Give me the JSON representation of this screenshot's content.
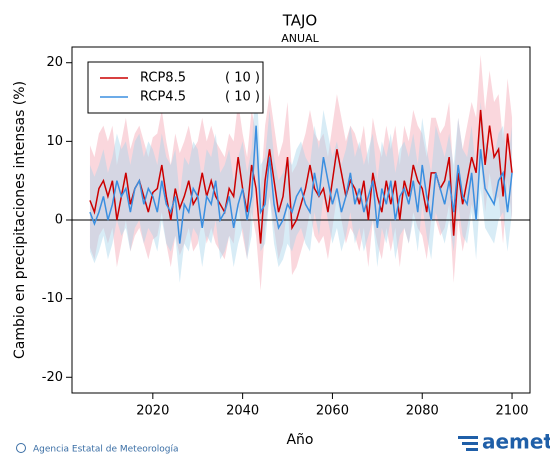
{
  "chart_data": {
    "type": "line",
    "title": "TAJO",
    "subtitle": "ANUAL",
    "x_label": "Año",
    "y_label": "Cambio en precipitaciones intensas (%)",
    "x": [
      2006,
      2007,
      2008,
      2009,
      2010,
      2011,
      2012,
      2013,
      2014,
      2015,
      2016,
      2017,
      2018,
      2019,
      2020,
      2021,
      2022,
      2023,
      2024,
      2025,
      2026,
      2027,
      2028,
      2029,
      2030,
      2031,
      2032,
      2033,
      2034,
      2035,
      2036,
      2037,
      2038,
      2039,
      2040,
      2041,
      2042,
      2043,
      2044,
      2045,
      2046,
      2047,
      2048,
      2049,
      2050,
      2051,
      2052,
      2053,
      2054,
      2055,
      2056,
      2057,
      2058,
      2059,
      2060,
      2061,
      2062,
      2063,
      2064,
      2065,
      2066,
      2067,
      2068,
      2069,
      2070,
      2071,
      2072,
      2073,
      2074,
      2075,
      2076,
      2077,
      2078,
      2079,
      2080,
      2081,
      2082,
      2083,
      2084,
      2085,
      2086,
      2087,
      2088,
      2089,
      2090,
      2091,
      2092,
      2093,
      2094,
      2095,
      2096,
      2097,
      2098,
      2099,
      2100
    ],
    "xlim": [
      2002,
      2104
    ],
    "xticks": [
      2020,
      2040,
      2060,
      2080,
      2100
    ],
    "ylim": [
      -22,
      22
    ],
    "yticks": [
      -20,
      -10,
      0,
      10,
      20
    ],
    "series": [
      {
        "name": "RCP8.5",
        "members_label": "( 10 )",
        "color": "#cc0000",
        "band_color": "#f4a6b4",
        "values": [
          2.5,
          1,
          4,
          5,
          3,
          5,
          0,
          3,
          6,
          2,
          4,
          5,
          3,
          1,
          3.5,
          4,
          7,
          3,
          0,
          4,
          1.5,
          3,
          5,
          2,
          3,
          6,
          3,
          5,
          3,
          2,
          1,
          4,
          3,
          8,
          4,
          1,
          7,
          4,
          -3,
          5,
          9,
          5,
          1,
          3,
          8,
          -1,
          0,
          2,
          4,
          7,
          4,
          3,
          4,
          1,
          5,
          9,
          6,
          3,
          5,
          4,
          2,
          5,
          0,
          6,
          3,
          1,
          5,
          2,
          5,
          0,
          5,
          3,
          7,
          5,
          4,
          1,
          6,
          6,
          4,
          5,
          8,
          -2,
          6,
          2,
          5,
          8,
          6,
          14,
          7,
          12,
          8,
          9,
          3,
          11,
          6
        ],
        "upper": [
          9.5,
          8,
          11,
          12,
          10,
          12,
          7,
          10,
          13,
          9,
          11,
          12,
          10,
          8,
          10.5,
          11,
          14,
          10,
          7,
          11,
          8.5,
          10,
          12,
          9,
          10,
          13,
          10,
          12,
          10,
          9,
          8,
          11,
          10,
          15,
          11,
          8,
          14,
          11,
          4,
          12,
          16,
          12,
          8,
          10,
          15,
          6,
          7,
          9,
          11,
          14,
          11,
          10,
          11,
          8,
          12,
          16,
          13,
          10,
          12,
          11,
          9,
          12,
          7,
          13,
          10,
          8,
          12,
          9,
          12,
          7,
          12,
          10,
          14,
          12,
          11,
          8,
          13,
          13,
          11,
          12,
          15,
          5,
          13,
          9,
          12,
          15,
          13,
          21,
          14,
          19,
          15,
          16,
          10,
          18,
          13
        ],
        "lower": [
          -3.5,
          -5,
          -2,
          -1,
          -3,
          -1,
          -6,
          -3,
          0,
          -4,
          -2,
          -1,
          -3,
          -5,
          -2.5,
          -2,
          1,
          -3,
          -6,
          -2,
          -4.5,
          -3,
          -1,
          -4,
          -3,
          0,
          -3,
          -1,
          -3,
          -4,
          -5,
          -2,
          -3,
          2,
          -2,
          -5,
          1,
          -2,
          -9,
          -1,
          3,
          -1,
          -5,
          -3,
          2,
          -7,
          -6,
          -4,
          -2,
          1,
          -2,
          -3,
          -2,
          -5,
          -1,
          3,
          0,
          -3,
          -1,
          -2,
          -4,
          -1,
          -6,
          0,
          -3,
          -5,
          -1,
          -4,
          -1,
          -6,
          -1,
          -3,
          1,
          -1,
          -2,
          -5,
          0,
          0,
          -2,
          -1,
          2,
          -8,
          0,
          -4,
          -1,
          2,
          0,
          8,
          1,
          6,
          2,
          3,
          -3,
          5,
          0
        ]
      },
      {
        "name": "RCP4.5",
        "members_label": "( 10 )",
        "color": "#3b8fe0",
        "band_color": "#a9d4ea",
        "values": [
          1,
          -0.5,
          1,
          3,
          0,
          2,
          5,
          3,
          4,
          1,
          4,
          5,
          2,
          4,
          3,
          1,
          5,
          2,
          1,
          3,
          -3,
          2,
          1,
          4,
          3,
          -1,
          3,
          2,
          5,
          0,
          1,
          3,
          -1,
          2,
          4,
          0,
          3,
          12,
          1,
          2,
          8,
          2,
          -1,
          0,
          2,
          1,
          3,
          4,
          2,
          1,
          6,
          3,
          8,
          5,
          2,
          4,
          1,
          3,
          6,
          2,
          4,
          1,
          3,
          5,
          -1,
          4,
          2,
          5,
          0,
          3,
          4,
          2,
          5,
          1,
          7,
          3,
          0,
          6,
          4,
          2,
          5,
          1,
          7,
          3,
          2,
          6,
          0,
          9,
          4,
          3,
          2,
          5,
          6,
          1,
          6
        ],
        "upper": [
          7,
          5.5,
          7,
          9,
          6,
          8,
          11,
          9,
          10,
          7,
          10,
          11,
          8,
          10,
          9,
          7,
          11,
          8,
          7,
          9,
          3,
          8,
          7,
          10,
          9,
          5,
          9,
          8,
          11,
          6,
          7,
          9,
          5,
          8,
          10,
          6,
          9,
          18,
          7,
          8,
          14,
          8,
          5,
          6,
          8,
          7,
          9,
          10,
          8,
          7,
          12,
          9,
          14,
          11,
          8,
          10,
          7,
          9,
          12,
          8,
          10,
          7,
          9,
          11,
          5,
          10,
          8,
          11,
          6,
          9,
          10,
          8,
          11,
          7,
          13,
          9,
          6,
          12,
          10,
          8,
          11,
          7,
          13,
          9,
          8,
          12,
          6,
          15,
          10,
          9,
          8,
          11,
          12,
          7,
          12
        ],
        "lower": [
          -4,
          -5.5,
          -4,
          -2,
          -5,
          -3,
          0,
          -2,
          -1,
          -4,
          -1,
          0,
          -3,
          -1,
          -2,
          -4,
          0,
          -3,
          -4,
          -2,
          -8,
          -3,
          -4,
          -1,
          -2,
          -6,
          -2,
          -3,
          0,
          -5,
          -4,
          -2,
          -6,
          -3,
          -1,
          -5,
          -2,
          7,
          -4,
          -3,
          3,
          -3,
          -6,
          -5,
          -3,
          -4,
          -2,
          -1,
          -3,
          -4,
          1,
          -2,
          3,
          0,
          -3,
          -1,
          -4,
          -2,
          1,
          -3,
          -1,
          -4,
          -2,
          0,
          -6,
          -1,
          -3,
          0,
          -5,
          -2,
          -1,
          -3,
          0,
          -4,
          2,
          -2,
          -5,
          1,
          -1,
          -3,
          0,
          -4,
          2,
          -2,
          -3,
          1,
          -5,
          4,
          -1,
          -2,
          -3,
          0,
          1,
          -4,
          1
        ]
      }
    ],
    "zero_line": true
  },
  "footer": {
    "credit": "Agencia Estatal de Meteorología",
    "logo": "aemet"
  }
}
